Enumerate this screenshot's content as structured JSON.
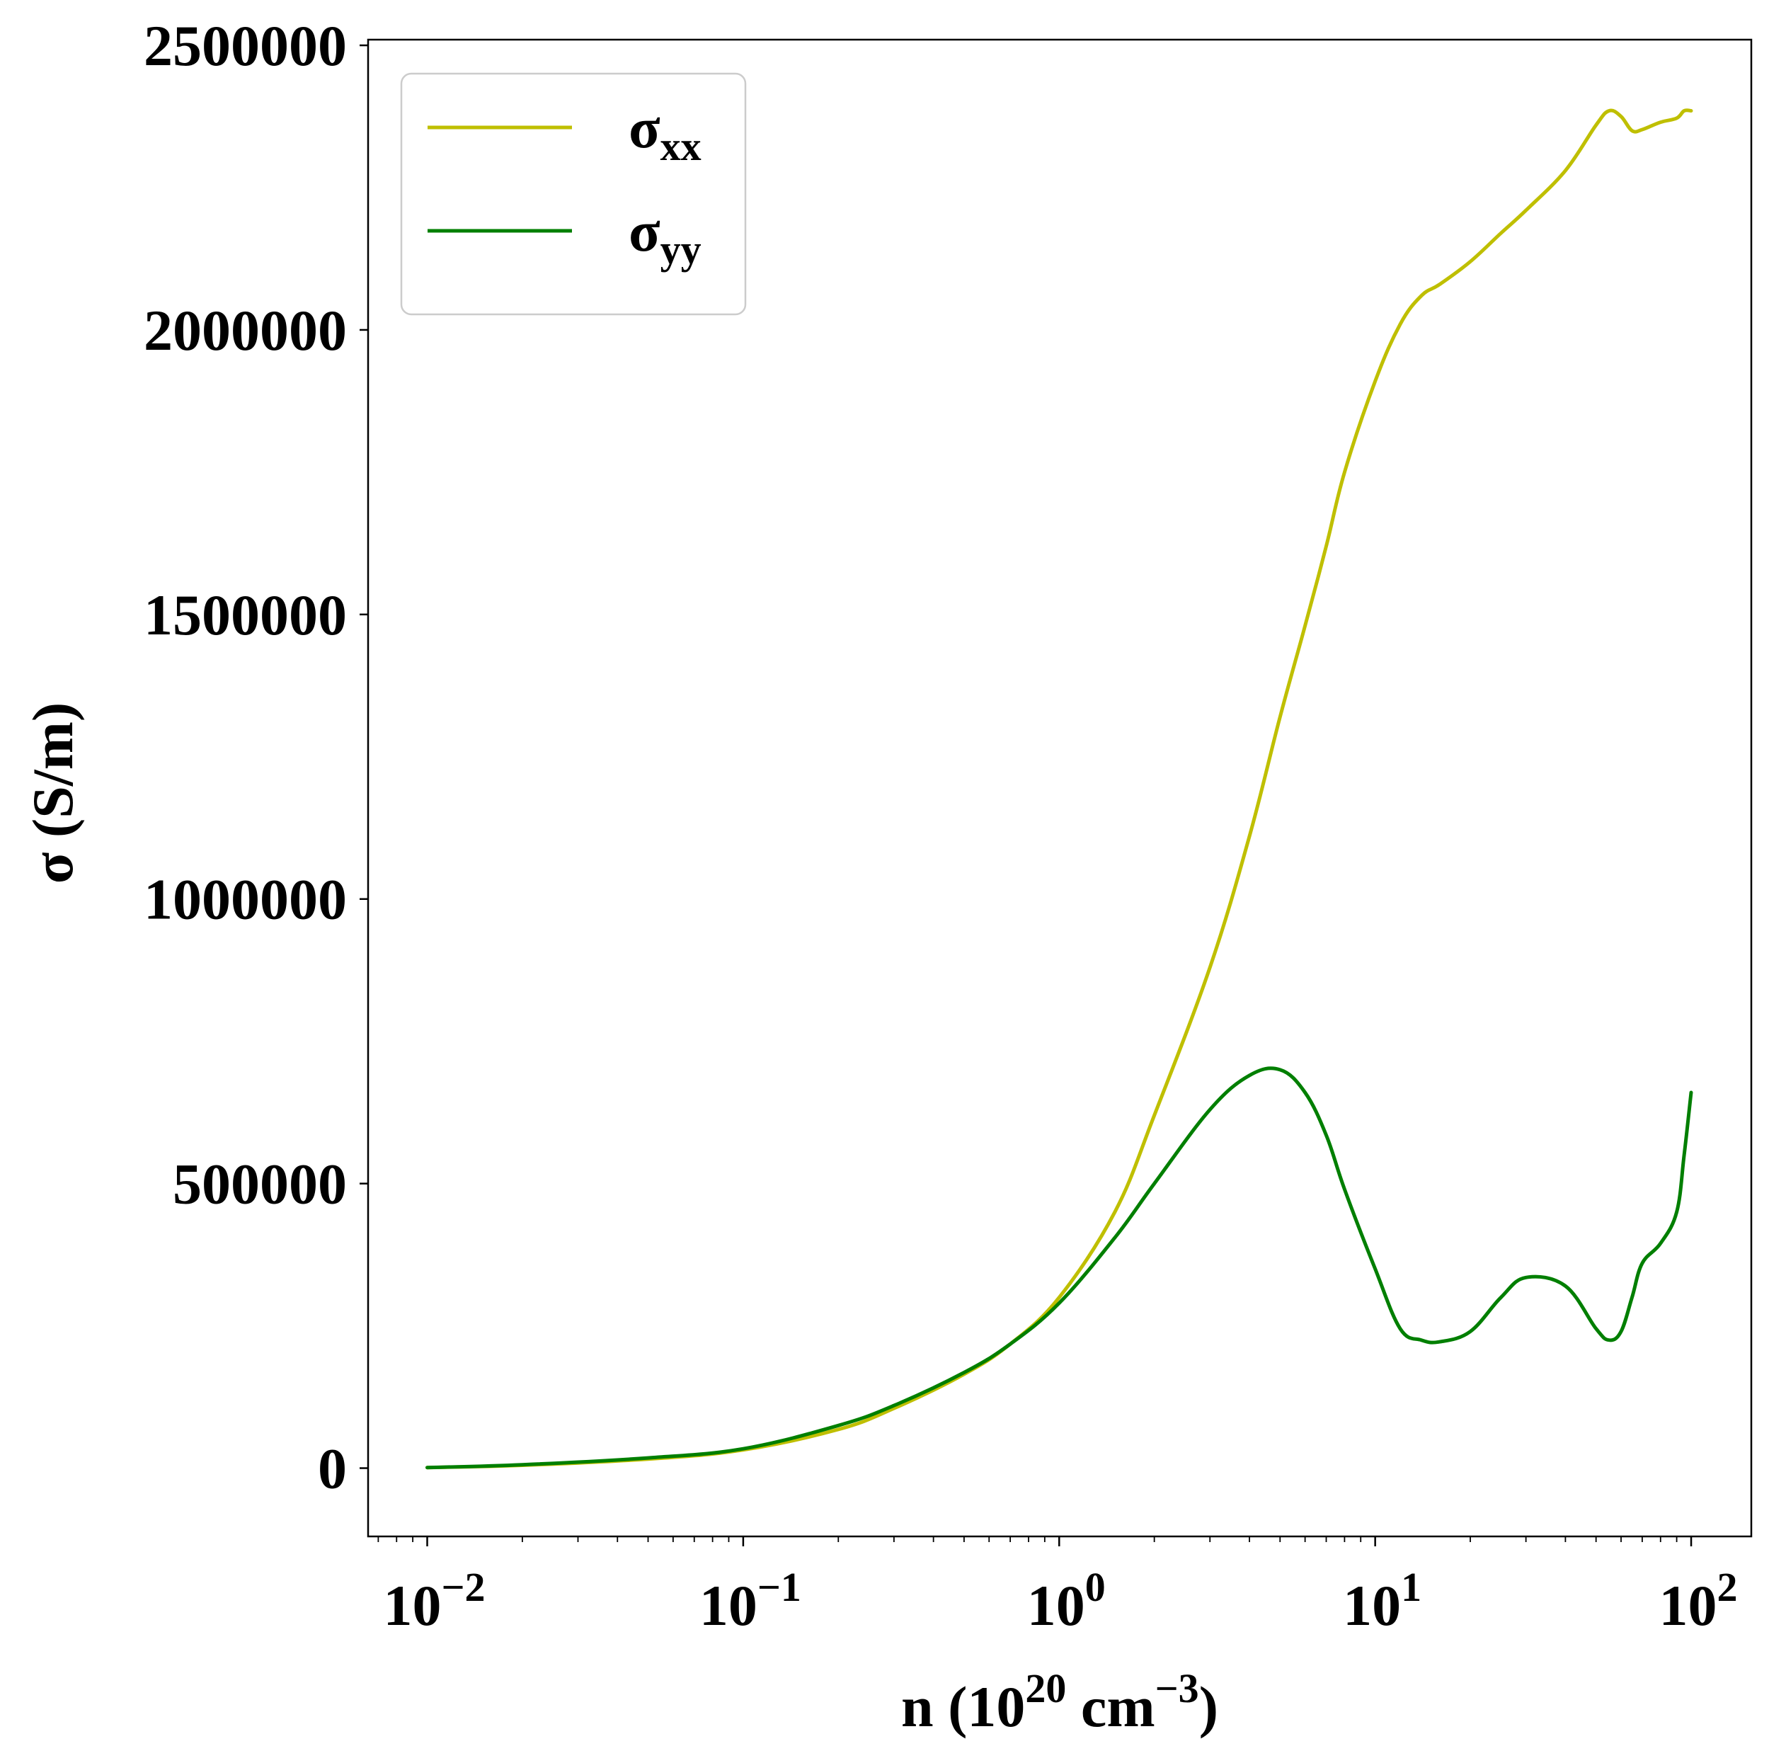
{
  "chart_data": {
    "type": "line",
    "title": "",
    "xlabel": {
      "base": "n (10",
      "exp1": "20",
      "mid": " cm",
      "exp2": "−3",
      "end": ")"
    },
    "ylabel": "σ (S/m)",
    "xscale": "log",
    "xlim": [
      0.0065,
      155
    ],
    "ylim": [
      -120000,
      2510000
    ],
    "x_ticks": [
      {
        "base": "10",
        "exp": "−2",
        "value": 0.01
      },
      {
        "base": "10",
        "exp": "−1",
        "value": 0.1
      },
      {
        "base": "10",
        "exp": "0",
        "value": 1
      },
      {
        "base": "10",
        "exp": "1",
        "value": 10
      },
      {
        "base": "10",
        "exp": "2",
        "value": 100
      }
    ],
    "y_ticks": [
      {
        "label": "0",
        "value": 0
      },
      {
        "label": "500000",
        "value": 500000
      },
      {
        "label": "1000000",
        "value": 1000000
      },
      {
        "label": "1500000",
        "value": 1500000
      },
      {
        "label": "2000000",
        "value": 2000000
      },
      {
        "label": "2500000",
        "value": 2500000
      }
    ],
    "grid": false,
    "legend_position": "top-left",
    "series": [
      {
        "name": "σ",
        "subscript": "xx",
        "color": "#bfbf00",
        "x": [
          0.01,
          0.02,
          0.05,
          0.1,
          0.2,
          0.3,
          0.5,
          0.7,
          1.0,
          1.5,
          2.0,
          3.0,
          4.0,
          5.0,
          6.0,
          7.0,
          8.0,
          10.0,
          12.0,
          14.0,
          16.0,
          20.0,
          25.0,
          30.0,
          40.0,
          50.0,
          55.0,
          60.0,
          65.0,
          70.0,
          80.0,
          90.0,
          95.0,
          100.0
        ],
        "y": [
          1000,
          5000,
          16000,
          32000,
          68000,
          105000,
          165000,
          218000,
          300000,
          450000,
          620000,
          880000,
          1110000,
          1320000,
          1480000,
          1620000,
          1750000,
          1910000,
          2010000,
          2060000,
          2080000,
          2120000,
          2170000,
          2210000,
          2280000,
          2360000,
          2385000,
          2375000,
          2350000,
          2352000,
          2365000,
          2372000,
          2385000,
          2385000
        ]
      },
      {
        "name": "σ",
        "subscript": "yy",
        "color": "#007f00",
        "x": [
          0.01,
          0.02,
          0.05,
          0.1,
          0.2,
          0.3,
          0.5,
          0.7,
          1.0,
          1.5,
          2.0,
          3.0,
          4.0,
          5.0,
          6.0,
          7.0,
          8.0,
          10.0,
          12.0,
          14.0,
          16.0,
          20.0,
          25.0,
          30.0,
          40.0,
          50.0,
          55.0,
          60.0,
          65.0,
          70.0,
          80.0,
          90.0,
          95.0,
          100.0
        ],
        "y": [
          1000,
          6000,
          18000,
          34000,
          75000,
          110000,
          168000,
          218000,
          290000,
          405000,
          500000,
          630000,
          690000,
          700000,
          660000,
          585000,
          490000,
          350000,
          245000,
          225000,
          222000,
          240000,
          300000,
          335000,
          320000,
          245000,
          225000,
          240000,
          300000,
          360000,
          395000,
          450000,
          550000,
          660000
        ]
      }
    ]
  }
}
